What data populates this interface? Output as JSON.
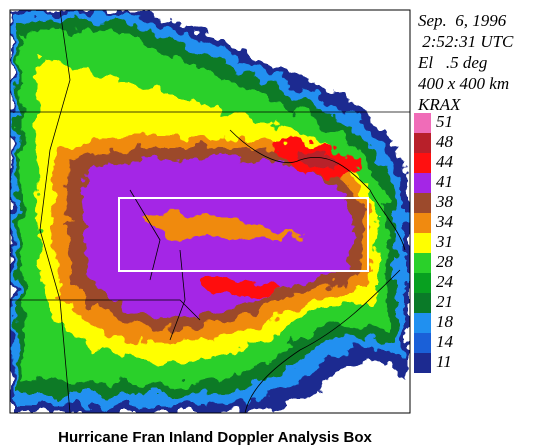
{
  "header": {
    "lines": [
      "Sep.  6, 1996",
      " 2:52:31 UTC",
      "El   .5 deg",
      "400 x 400 km",
      "KRAX"
    ]
  },
  "legend": {
    "items": [
      {
        "value": 51,
        "color": "#f06cb8"
      },
      {
        "value": 48,
        "color": "#b8202a"
      },
      {
        "value": 44,
        "color": "#ff1010"
      },
      {
        "value": 41,
        "color": "#a426e6"
      },
      {
        "value": 38,
        "color": "#9c4a2c"
      },
      {
        "value": 34,
        "color": "#f08a10"
      },
      {
        "value": 31,
        "color": "#ffff00"
      },
      {
        "value": 28,
        "color": "#2ad02a"
      },
      {
        "value": 24,
        "color": "#08a020"
      },
      {
        "value": 21,
        "color": "#0a7a28"
      },
      {
        "value": 18,
        "color": "#2090f0"
      },
      {
        "value": 14,
        "color": "#1a60d8"
      },
      {
        "value": 11,
        "color": "#1c2a90"
      }
    ]
  },
  "caption": "Hurricane Fran Inland Doppler Analysis Box"
}
